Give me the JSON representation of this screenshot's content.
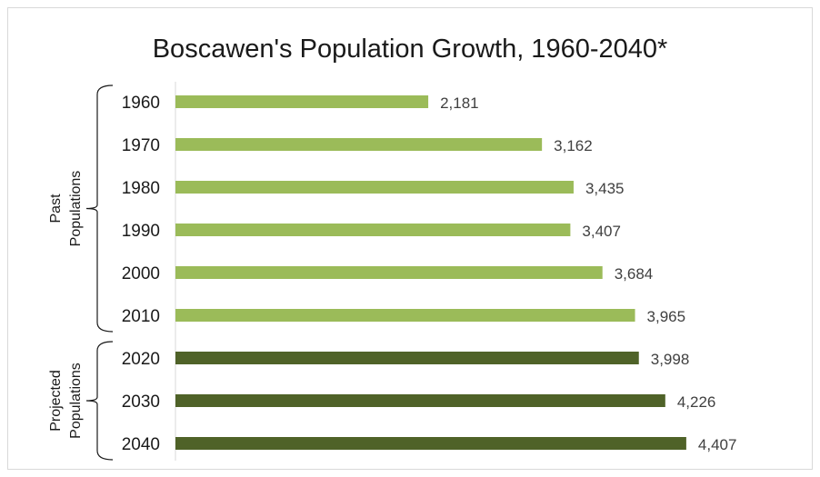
{
  "chart_data": {
    "type": "bar",
    "orientation": "horizontal",
    "title": "Boscawen's Population Growth, 1960-2040*",
    "categories": [
      "1960",
      "1970",
      "1980",
      "1990",
      "2000",
      "2010",
      "2020",
      "2030",
      "2040"
    ],
    "values": [
      2181,
      3162,
      3435,
      3407,
      3684,
      3965,
      3998,
      4226,
      4407
    ],
    "value_labels": [
      "2,181",
      "3,162",
      "3,435",
      "3,407",
      "3,684",
      "3,965",
      "3,998",
      "4,226",
      "4,407"
    ],
    "groups": [
      {
        "label_lines": [
          "Past",
          "Populations"
        ],
        "categories": [
          "1960",
          "1970",
          "1980",
          "1990",
          "2000",
          "2010"
        ],
        "color": "#9bbb59"
      },
      {
        "label_lines": [
          "Projected",
          "Populations"
        ],
        "categories": [
          "2020",
          "2030",
          "2040"
        ],
        "color": "#4f6228"
      }
    ],
    "xlim": [
      0,
      5000
    ],
    "grid": false,
    "legend": "none",
    "colors": {
      "past": "#9bbb59",
      "projected": "#4f6228"
    }
  }
}
